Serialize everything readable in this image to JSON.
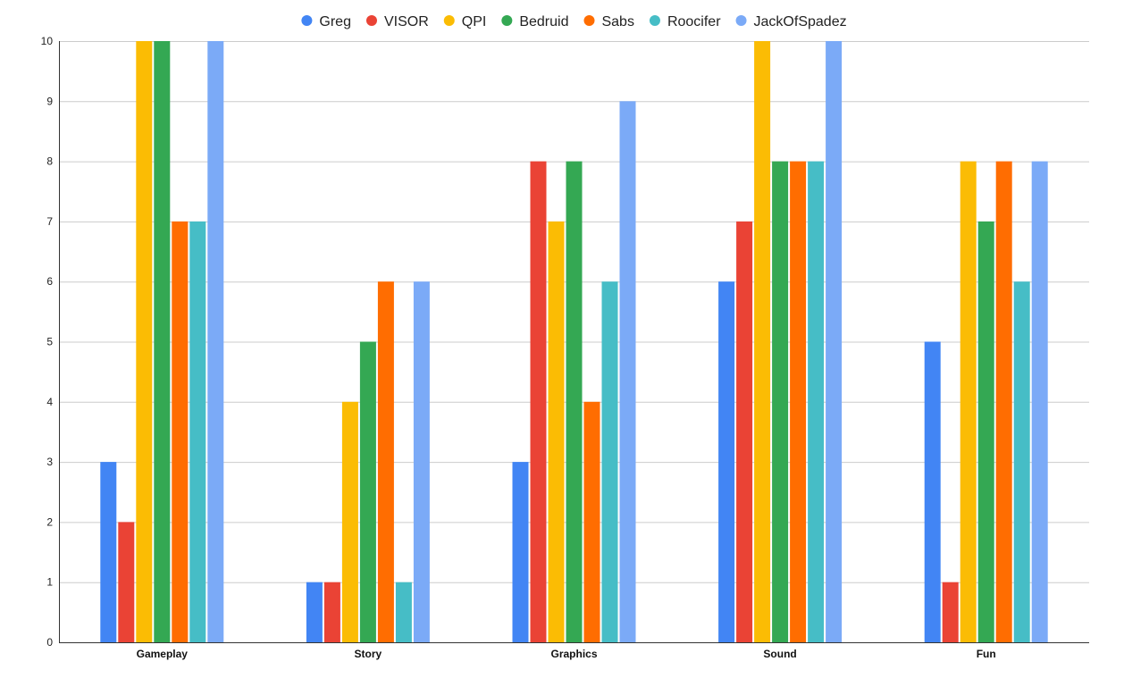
{
  "chart_data": {
    "type": "bar",
    "title": "",
    "xlabel": "",
    "ylabel": "",
    "categories": [
      "Gameplay",
      "Story",
      "Graphics",
      "Sound",
      "Fun"
    ],
    "ylim": [
      0,
      10
    ],
    "yticks": [
      0,
      1,
      2,
      3,
      4,
      5,
      6,
      7,
      8,
      9,
      10
    ],
    "grid": true,
    "legend_position": "top",
    "series": [
      {
        "name": "Greg",
        "color": "#4285f4",
        "values": [
          3,
          1,
          3,
          6,
          5
        ]
      },
      {
        "name": "VISOR",
        "color": "#ea4335",
        "values": [
          2,
          1,
          8,
          7,
          1
        ]
      },
      {
        "name": "QPI",
        "color": "#fbbc04",
        "values": [
          10,
          4,
          7,
          10,
          8
        ]
      },
      {
        "name": "Bedruid",
        "color": "#34a853",
        "values": [
          10,
          5,
          8,
          8,
          7
        ]
      },
      {
        "name": "Sabs",
        "color": "#ff6d01",
        "values": [
          7,
          6,
          4,
          8,
          8
        ]
      },
      {
        "name": "Roocifer",
        "color": "#46bdc6",
        "values": [
          7,
          1,
          6,
          8,
          6
        ]
      },
      {
        "name": "JackOfSpadez",
        "color": "#7baaf7",
        "values": [
          10,
          6,
          9,
          10,
          8
        ]
      }
    ]
  }
}
